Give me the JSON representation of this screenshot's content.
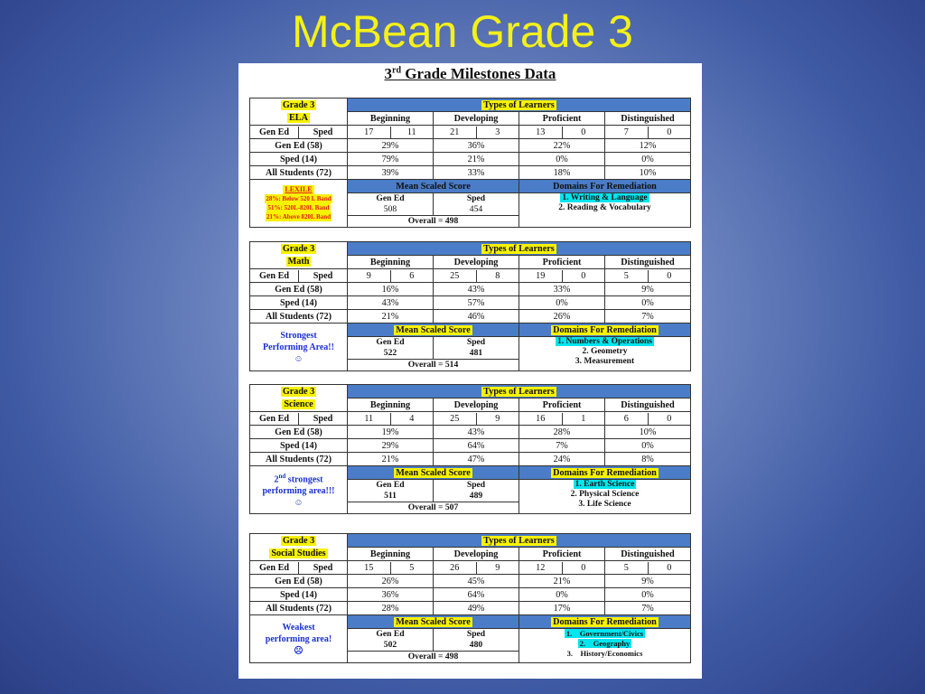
{
  "slide_title": "McBean Grade 3",
  "doc_title": {
    "prefix": "3",
    "sup": "rd",
    "rest": " Grade Milestones Data"
  },
  "common": {
    "types_of_learners": "Types of Learners",
    "beginning": "Beginning",
    "developing": "Developing",
    "proficient": "Proficient",
    "distinguished": "Distinguished",
    "gen_ed": "Gen Ed",
    "sped": "Sped",
    "row_gen_ed": "Gen Ed (58)",
    "row_sped": "Sped (14)",
    "row_all": "All Students (72)",
    "mean_scaled_score": "Mean Scaled Score",
    "domains_for_remediation": "Domains For Remediation"
  },
  "ela": {
    "grade": "Grade 3",
    "subject": "ELA",
    "counts": [
      "17",
      "11",
      "21",
      "3",
      "13",
      "0",
      "7",
      "0"
    ],
    "gen_ed": [
      "29%",
      "36%",
      "22%",
      "12%"
    ],
    "sped": [
      "79%",
      "21%",
      "0%",
      "0%"
    ],
    "all": [
      "39%",
      "33%",
      "18%",
      "10%"
    ],
    "lexile_title": "LEXILE",
    "lexile_lines": [
      "28%: Below 520 L Band",
      "51%: 520L-820L Band",
      "21%: Above 820L Band"
    ],
    "score_gen_ed": "508",
    "score_sped": "454",
    "overall": "Overall = 498",
    "domains": [
      "1. Writing & Language",
      "2. Reading & Vocabulary"
    ]
  },
  "math": {
    "grade": "Grade 3",
    "subject": "Math",
    "counts": [
      "9",
      "6",
      "25",
      "8",
      "19",
      "0",
      "5",
      "0"
    ],
    "gen_ed": [
      "16%",
      "43%",
      "33%",
      "9%"
    ],
    "sped": [
      "43%",
      "57%",
      "0%",
      "0%"
    ],
    "all": [
      "21%",
      "46%",
      "26%",
      "7%"
    ],
    "note": [
      "Strongest",
      "Performing Area!!",
      "☺"
    ],
    "score_gen_ed": "522",
    "score_sped": "481",
    "overall": "Overall = 514",
    "domains": [
      "1. Numbers & Operations",
      "2. Geometry",
      "3. Measurement"
    ]
  },
  "science": {
    "grade": "Grade 3",
    "subject": "Science",
    "counts": [
      "11",
      "4",
      "25",
      "9",
      "16",
      "1",
      "6",
      "0"
    ],
    "gen_ed": [
      "19%",
      "43%",
      "28%",
      "10%"
    ],
    "sped": [
      "29%",
      "64%",
      "7%",
      "0%"
    ],
    "all": [
      "21%",
      "47%",
      "24%",
      "8%"
    ],
    "note": [
      "2",
      "nd",
      " strongest",
      "performing area!!!",
      "☺"
    ],
    "score_gen_ed": "511",
    "score_sped": "489",
    "overall": "Overall = 507",
    "domains": [
      "1. Earth Science",
      "2. Physical Science",
      "3. Life Science"
    ]
  },
  "social": {
    "grade": "Grade 3",
    "subject": "Social Studies",
    "counts": [
      "15",
      "5",
      "26",
      "9",
      "12",
      "0",
      "5",
      "0"
    ],
    "gen_ed": [
      "26%",
      "45%",
      "21%",
      "9%"
    ],
    "sped": [
      "36%",
      "64%",
      "0%",
      "0%"
    ],
    "all": [
      "28%",
      "49%",
      "17%",
      "7%"
    ],
    "note": [
      "Weakest",
      "performing area!",
      "☹"
    ],
    "score_gen_ed": "502",
    "score_sped": "480",
    "overall": "Overall = 498",
    "domains": [
      "1.    Government/Civics",
      "2.    Geography",
      "3.    History/Economics"
    ]
  }
}
